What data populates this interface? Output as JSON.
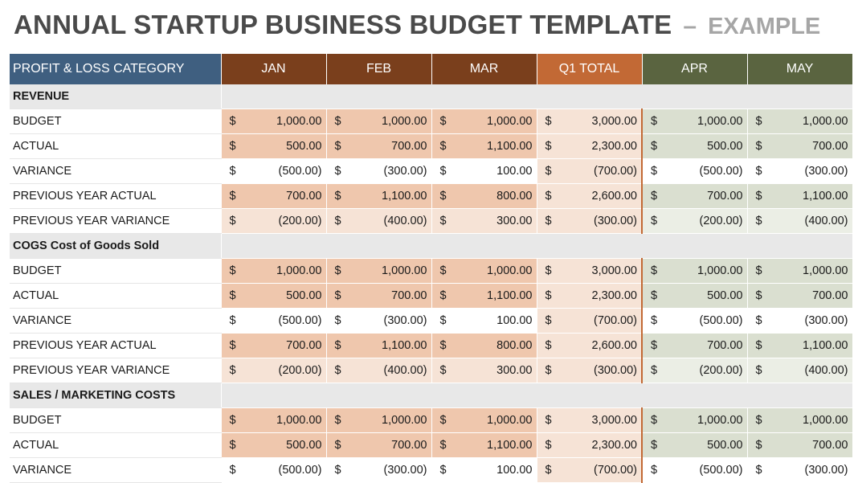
{
  "title": {
    "main": "ANNUAL STARTUP BUSINESS BUDGET TEMPLATE",
    "dash": "–",
    "sub": "EXAMPLE"
  },
  "header": {
    "category": "PROFIT & LOSS CATEGORY",
    "columns": [
      "JAN",
      "FEB",
      "MAR",
      "Q1 TOTAL",
      "APR",
      "MAY"
    ]
  },
  "currency_symbol": "$",
  "sections": [
    {
      "name": "REVENUE",
      "rows": [
        {
          "label": "BUDGET",
          "values": [
            "1,000.00",
            "1,000.00",
            "1,000.00",
            "3,000.00",
            "1,000.00",
            "1,000.00"
          ]
        },
        {
          "label": "ACTUAL",
          "values": [
            "500.00",
            "700.00",
            "1,100.00",
            "2,300.00",
            "500.00",
            "700.00"
          ]
        },
        {
          "label": "VARIANCE",
          "values": [
            "(500.00)",
            "(300.00)",
            "100.00",
            "(700.00)",
            "(500.00)",
            "(300.00)"
          ]
        },
        {
          "label": "PREVIOUS YEAR ACTUAL",
          "values": [
            "700.00",
            "1,100.00",
            "800.00",
            "2,600.00",
            "700.00",
            "1,100.00"
          ]
        },
        {
          "label": "PREVIOUS YEAR VARIANCE",
          "values": [
            "(200.00)",
            "(400.00)",
            "300.00",
            "(300.00)",
            "(200.00)",
            "(400.00)"
          ]
        }
      ]
    },
    {
      "name": "COGS Cost of Goods Sold",
      "rows": [
        {
          "label": "BUDGET",
          "values": [
            "1,000.00",
            "1,000.00",
            "1,000.00",
            "3,000.00",
            "1,000.00",
            "1,000.00"
          ]
        },
        {
          "label": "ACTUAL",
          "values": [
            "500.00",
            "700.00",
            "1,100.00",
            "2,300.00",
            "500.00",
            "700.00"
          ]
        },
        {
          "label": "VARIANCE",
          "values": [
            "(500.00)",
            "(300.00)",
            "100.00",
            "(700.00)",
            "(500.00)",
            "(300.00)"
          ]
        },
        {
          "label": "PREVIOUS YEAR ACTUAL",
          "values": [
            "700.00",
            "1,100.00",
            "800.00",
            "2,600.00",
            "700.00",
            "1,100.00"
          ]
        },
        {
          "label": "PREVIOUS YEAR VARIANCE",
          "values": [
            "(200.00)",
            "(400.00)",
            "300.00",
            "(300.00)",
            "(200.00)",
            "(400.00)"
          ]
        }
      ]
    },
    {
      "name": "SALES / MARKETING COSTS",
      "rows": [
        {
          "label": "BUDGET",
          "values": [
            "1,000.00",
            "1,000.00",
            "1,000.00",
            "3,000.00",
            "1,000.00",
            "1,000.00"
          ]
        },
        {
          "label": "ACTUAL",
          "values": [
            "500.00",
            "700.00",
            "1,100.00",
            "2,300.00",
            "500.00",
            "700.00"
          ]
        },
        {
          "label": "VARIANCE",
          "values": [
            "(500.00)",
            "(300.00)",
            "100.00",
            "(700.00)",
            "(500.00)",
            "(300.00)"
          ]
        }
      ]
    }
  ],
  "colors": {
    "title_text": "#4a4a4a",
    "subtitle_text": "#a6a6a6",
    "category_header": "#3f5f80",
    "q1_month_header": "#7a3f1c",
    "q1_total_header": "#c26935",
    "q2_month_header": "#5a6440",
    "section_row": "#e8e8e8",
    "q1_dark": "#efc7ad",
    "q1_light": "#f6e3d6",
    "q2_dark": "#dadfd0",
    "q2_light": "#ebeee5"
  }
}
